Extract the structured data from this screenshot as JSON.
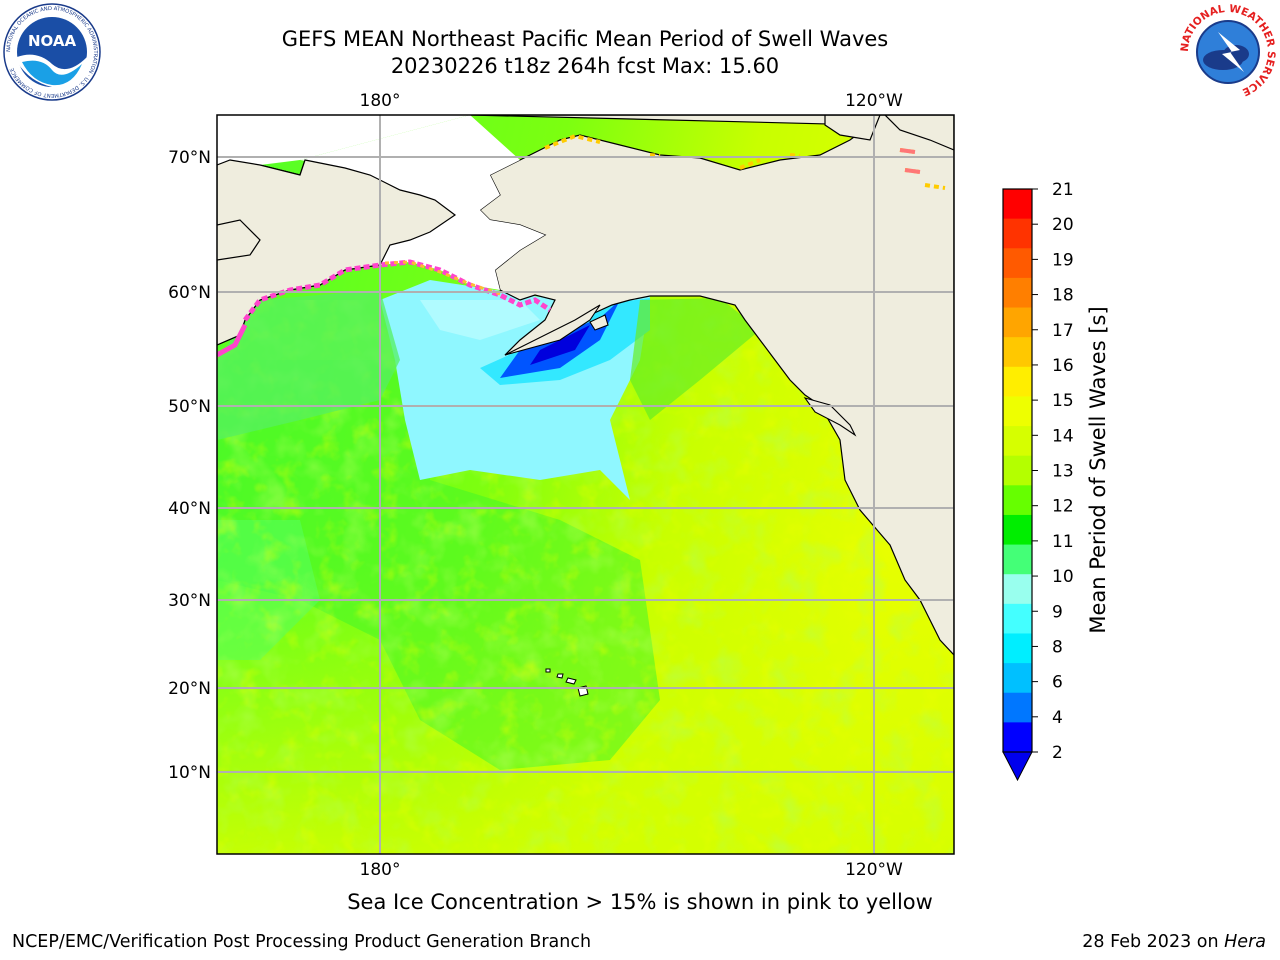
{
  "title": {
    "line1": "GEFS MEAN Northeast Pacific Mean Period of Swell Waves",
    "line2": "20230226 t18z 264h fcst   Max: 15.60"
  },
  "logos": {
    "left": "noaa-logo",
    "left_text": "NOAA",
    "left_ring_text": "NATIONAL OCEANIC AND ATMOSPHERIC ADMINISTRATION · U.S. DEPARTMENT OF COMMERCE",
    "right": "nws-logo",
    "right_ring_text": "NATIONAL WEATHER SERVICE"
  },
  "map": {
    "top_lon_labels": [
      "180°",
      "120°W"
    ],
    "bottom_lon_labels": [
      "180°",
      "120°W"
    ],
    "lat_labels": [
      "70°N",
      "60°N",
      "50°N",
      "40°N",
      "30°N",
      "20°N",
      "10°N"
    ],
    "colors": {
      "land": "#efedde",
      "ice_free_unknown": "#ffffff",
      "gridline": "#b0b0b0"
    }
  },
  "colorbar": {
    "label": "Mean Period of Swell Waves [s]",
    "ticks": [
      "21",
      "20",
      "19",
      "18",
      "17",
      "16",
      "15",
      "14",
      "13",
      "12",
      "11",
      "10",
      "9",
      "8",
      "6",
      "4",
      "2"
    ],
    "colors": [
      "#ff0000",
      "#ff3300",
      "#ff5a00",
      "#ff7f00",
      "#ffa500",
      "#ffc800",
      "#ffee00",
      "#eeff00",
      "#d6ff00",
      "#b4ff00",
      "#66ff00",
      "#00ee00",
      "#44ff77",
      "#99ffee",
      "#44ffff",
      "#00eeff",
      "#00c0ff",
      "#0077ff",
      "#0000ff"
    ],
    "extend_min_color": "#0000ee"
  },
  "caption": "Sea Ice Concentration > 15% is shown in pink to yellow",
  "footer": {
    "left": "NCEP/EMC/Verification Post Processing Product Generation Branch",
    "right_prefix": "28 Feb 2023 on ",
    "right_italic": "Hera"
  }
}
